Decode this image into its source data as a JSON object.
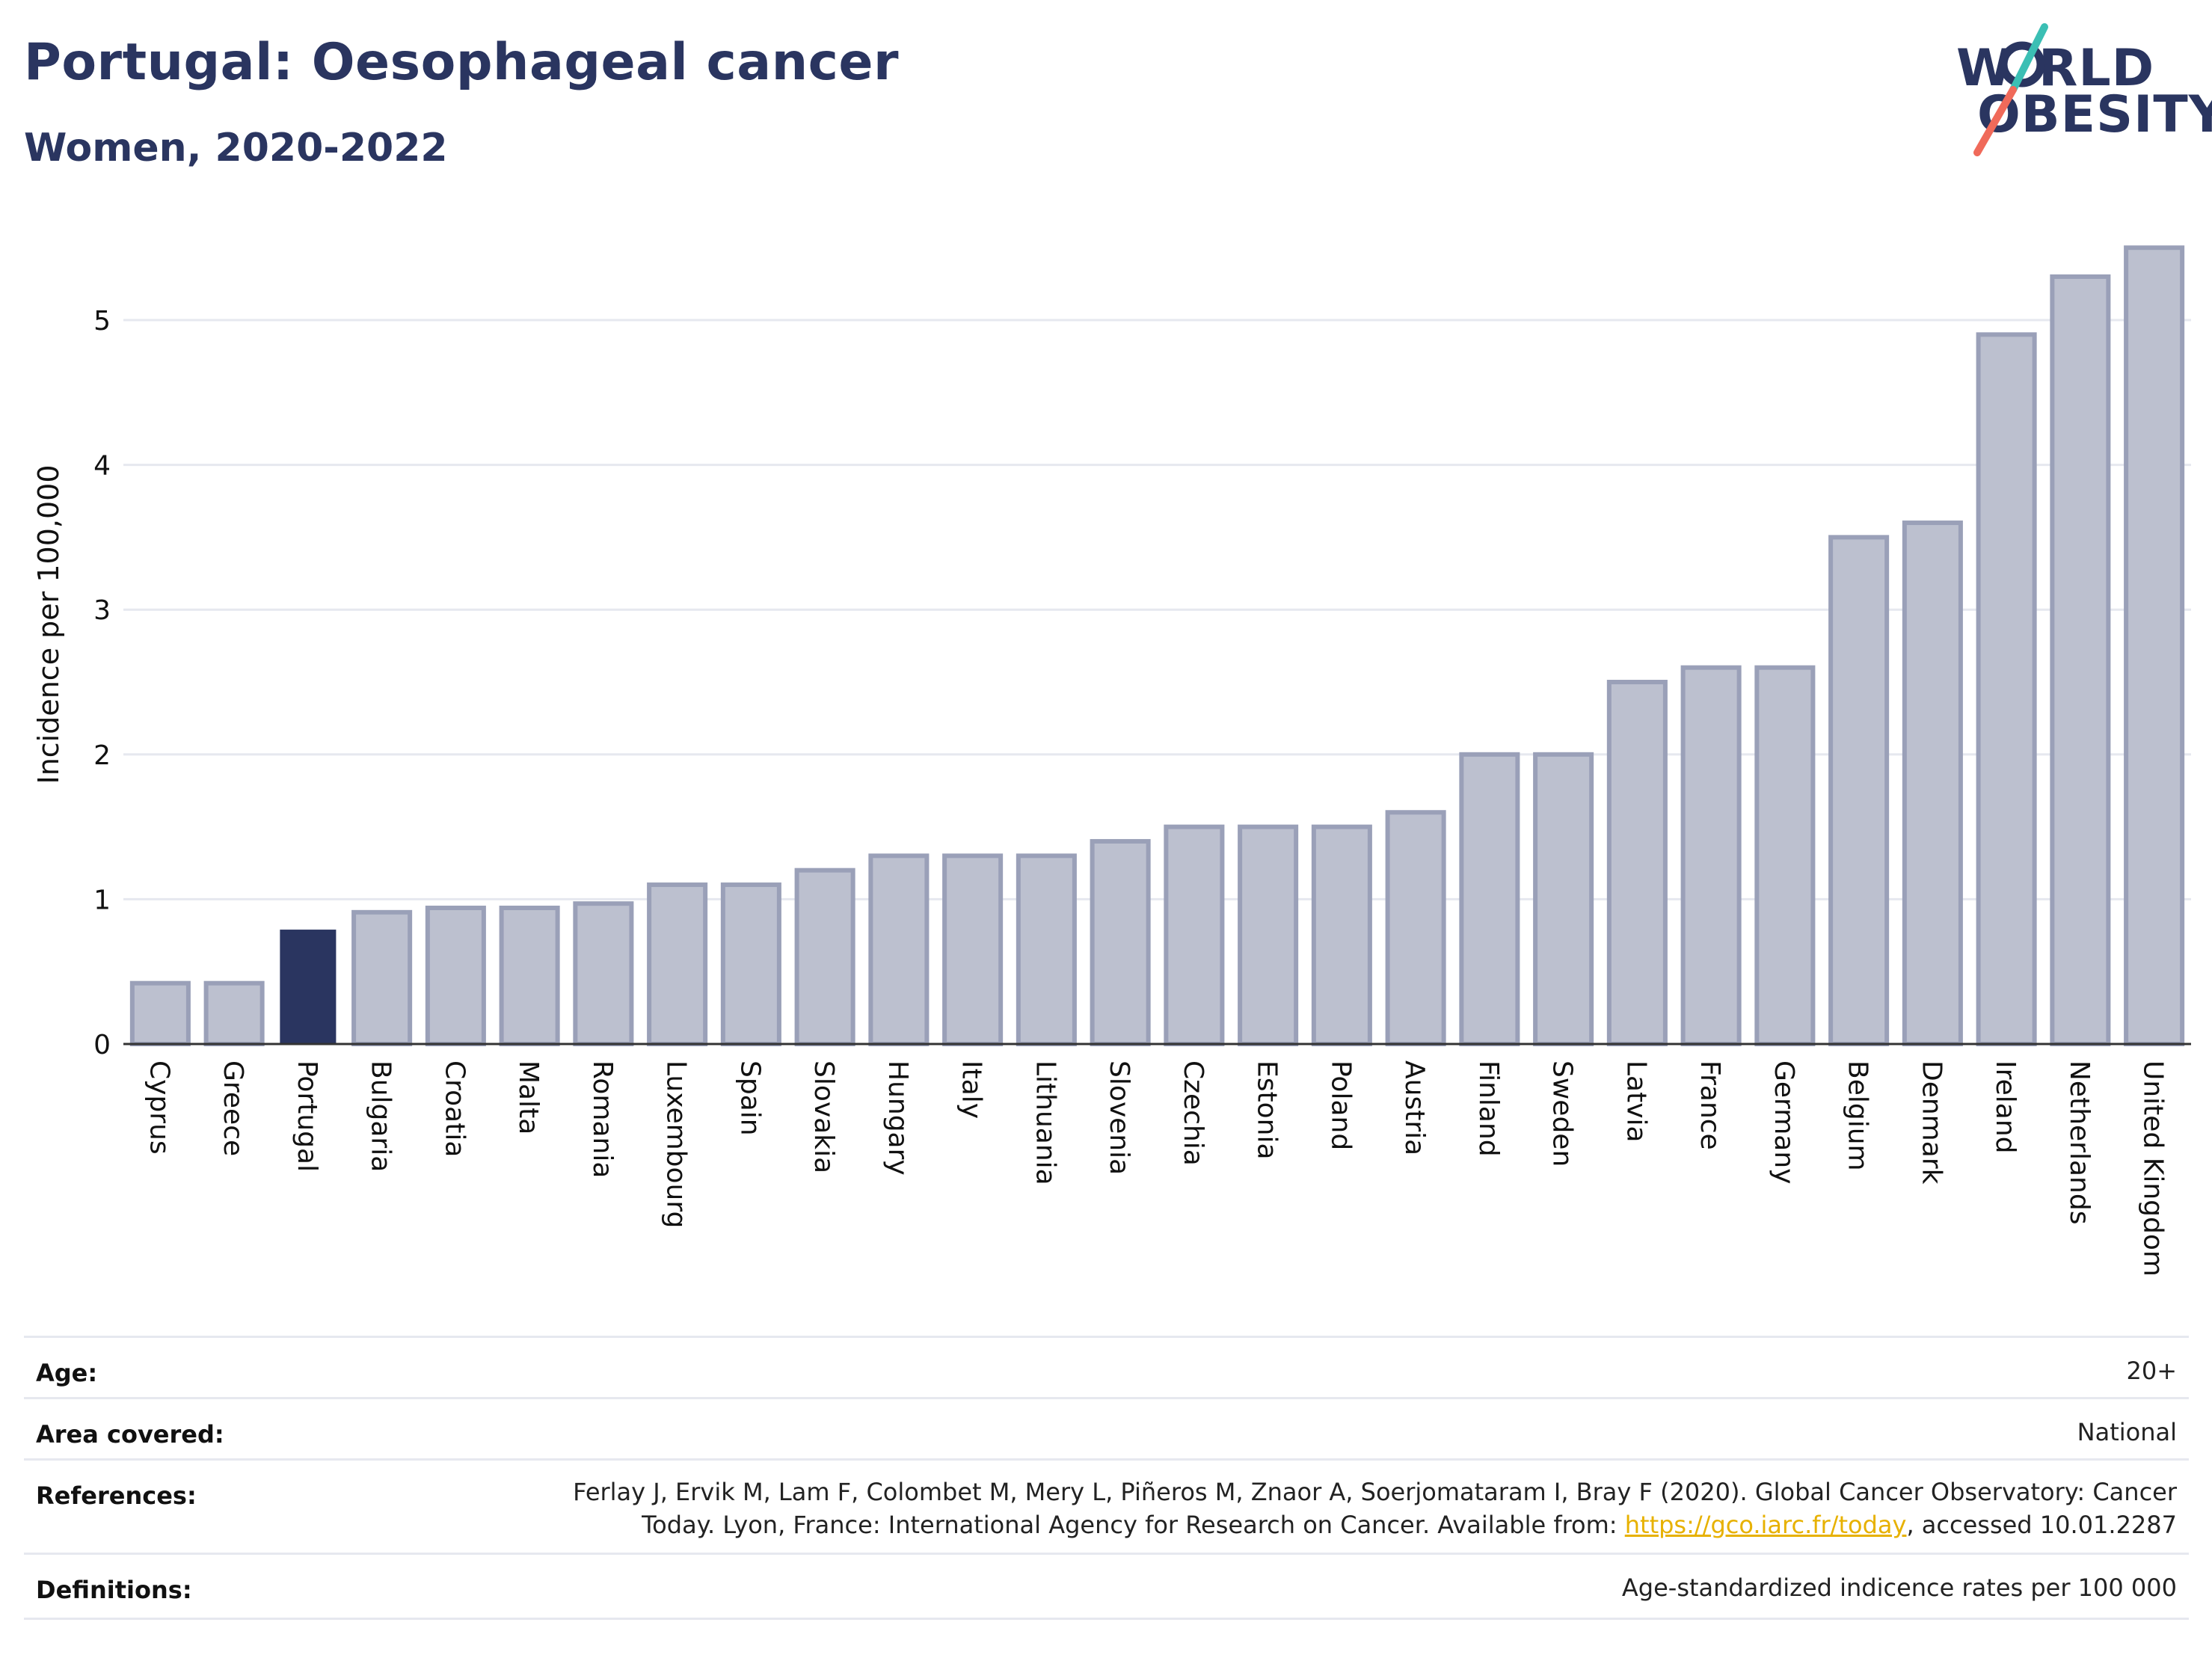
{
  "header": {
    "title": "Portugal: Oesophageal cancer",
    "subtitle": "Women, 2020-2022"
  },
  "logo": {
    "line1": "W",
    "line1b": "RLD",
    "line2": "OBESITY",
    "colors": {
      "navy": "#2a3560",
      "teal": "#3bbfb4",
      "coral": "#f06a5a"
    }
  },
  "chart_data": {
    "type": "bar",
    "title": "Portugal: Oesophageal cancer",
    "subtitle": "Women, 2020-2022",
    "xlabel": "",
    "ylabel": "Incidence per 100,000",
    "ylim": [
      0,
      5.6
    ],
    "yticks": [
      0,
      1,
      2,
      3,
      4,
      5
    ],
    "grid": true,
    "highlight": "Portugal",
    "colors": {
      "bar": "#bcc0cf",
      "bar_border": "#9aa0b8",
      "highlight": "#2a3560",
      "grid": "#e6e8ef",
      "axis": "#333333"
    },
    "categories": [
      "Cyprus",
      "Greece",
      "Portugal",
      "Bulgaria",
      "Croatia",
      "Malta",
      "Romania",
      "Luxembourg",
      "Spain",
      "Slovakia",
      "Hungary",
      "Italy",
      "Lithuania",
      "Slovenia",
      "Czechia",
      "Estonia",
      "Poland",
      "Austria",
      "Finland",
      "Sweden",
      "Latvia",
      "France",
      "Germany",
      "Belgium",
      "Denmark",
      "Ireland",
      "Netherlands",
      "United Kingdom"
    ],
    "values": [
      0.42,
      0.42,
      0.79,
      0.91,
      0.94,
      0.94,
      0.97,
      1.1,
      1.1,
      1.2,
      1.3,
      1.3,
      1.3,
      1.4,
      1.5,
      1.5,
      1.5,
      1.6,
      2.0,
      2.0,
      2.5,
      2.6,
      2.6,
      3.5,
      3.6,
      4.9,
      5.3,
      5.5
    ]
  },
  "meta": {
    "age": {
      "label": "Age:",
      "value": "20+"
    },
    "area": {
      "label": "Area covered:",
      "value": "National"
    },
    "references": {
      "label": "References:",
      "line1": "Ferlay J, Ervik M, Lam F, Colombet M, Mery L, Piñeros M, Znaor A, Soerjomataram I, Bray F (2020). Global Cancer Observatory: Cancer",
      "line2_pre": "Today. Lyon, France: International Agency for Research on Cancer. Available from: ",
      "link": "https://gco.iarc.fr/today",
      "line2_post": ", accessed 10.01.2287"
    },
    "definitions": {
      "label": "Definitions:",
      "value": "Age-standardized indicence rates per 100 000"
    }
  }
}
